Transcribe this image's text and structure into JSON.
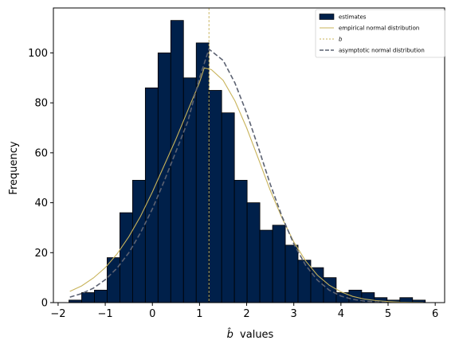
{
  "chart_data": {
    "type": "bar",
    "title": "",
    "xlabel": "values",
    "xlabel_symbol": "b̂",
    "ylabel": "Frequency",
    "xlim": [
      -2.1,
      6.2
    ],
    "ylim": [
      0,
      118
    ],
    "xticks": [
      -2,
      -1,
      0,
      1,
      2,
      3,
      4,
      5,
      6
    ],
    "xtick_labels": [
      "−2",
      "−1",
      "0",
      "1",
      "2",
      "3",
      "4",
      "5",
      "6"
    ],
    "yticks": [
      0,
      20,
      40,
      60,
      80,
      100
    ],
    "ytick_labels": [
      "0",
      "20",
      "40",
      "60",
      "80",
      "100"
    ],
    "grid": false,
    "legend_position": "top-right",
    "histogram": {
      "name": "estimates",
      "bin_edges": [
        -1.77,
        -1.5,
        -1.23,
        -0.96,
        -0.69,
        -0.42,
        -0.15,
        0.12,
        0.39,
        0.66,
        0.93,
        1.2,
        1.47,
        1.74,
        2.01,
        2.28,
        2.55,
        2.82,
        3.09,
        3.36,
        3.63,
        3.9,
        4.17,
        4.44,
        4.71,
        4.98,
        5.25,
        5.52,
        5.79
      ],
      "counts": [
        1,
        4,
        5,
        18,
        36,
        49,
        86,
        100,
        113,
        90,
        104,
        85,
        76,
        49,
        40,
        29,
        31,
        23,
        17,
        14,
        10,
        4,
        5,
        4,
        2,
        1,
        2,
        1
      ],
      "color": "#00204a"
    },
    "series": [
      {
        "name": "empirical normal distribution",
        "style": "solid",
        "color": "#c8b35a",
        "x": [
          -1.75,
          -1.5,
          -1.25,
          -1.0,
          -0.75,
          -0.5,
          -0.25,
          0.0,
          0.25,
          0.5,
          0.75,
          1.0,
          1.1,
          1.25,
          1.5,
          1.75,
          2.0,
          2.25,
          2.5,
          2.75,
          3.0,
          3.25,
          3.5,
          3.75,
          4.0,
          4.25,
          4.5,
          4.75,
          5.0,
          5.25,
          5.5,
          5.75
        ],
        "y": [
          4.5,
          6.7,
          9.9,
          14.0,
          19.5,
          26.4,
          34.6,
          44.3,
          54.9,
          65.5,
          76.9,
          88.2,
          94.0,
          93.3,
          89.0,
          80.8,
          70.0,
          57.6,
          45.0,
          33.9,
          24.3,
          16.7,
          11.0,
          7.0,
          4.3,
          2.5,
          1.4,
          0.8,
          0.4,
          0.2,
          0.1,
          0.05
        ]
      },
      {
        "name": "b",
        "style": "dashed-vertical",
        "color": "#c8b35a",
        "x_value": 1.2
      },
      {
        "name": "asymptotic normal distribution",
        "style": "dashed",
        "color": "#5c6272",
        "x": [
          -1.75,
          -1.5,
          -1.25,
          -1.0,
          -0.75,
          -0.5,
          -0.25,
          0.0,
          0.25,
          0.5,
          0.75,
          1.0,
          1.2,
          1.5,
          1.75,
          2.0,
          2.25,
          2.5,
          2.75,
          3.0,
          3.25,
          3.5,
          3.75,
          4.0,
          4.25,
          4.5,
          4.75,
          5.0
        ],
        "y": [
          2.2,
          3.6,
          5.8,
          9.2,
          13.8,
          20.0,
          28.0,
          37.5,
          48.6,
          60.5,
          72.5,
          90.0,
          101.5,
          97.0,
          88.0,
          76.0,
          62.0,
          47.5,
          34.5,
          23.5,
          15.0,
          9.0,
          5.0,
          2.6,
          1.3,
          0.6,
          0.25,
          0.1
        ]
      }
    ],
    "legend": [
      {
        "label": "estimates",
        "kind": "patch",
        "color": "#00204a"
      },
      {
        "label": "empirical normal distribution",
        "kind": "line-solid",
        "color": "#c8b35a"
      },
      {
        "label": "b",
        "kind": "line-dashed",
        "color": "#c8b35a"
      },
      {
        "label": "asymptotic normal distribution",
        "kind": "line-dashed",
        "color": "#5c6272"
      }
    ]
  }
}
